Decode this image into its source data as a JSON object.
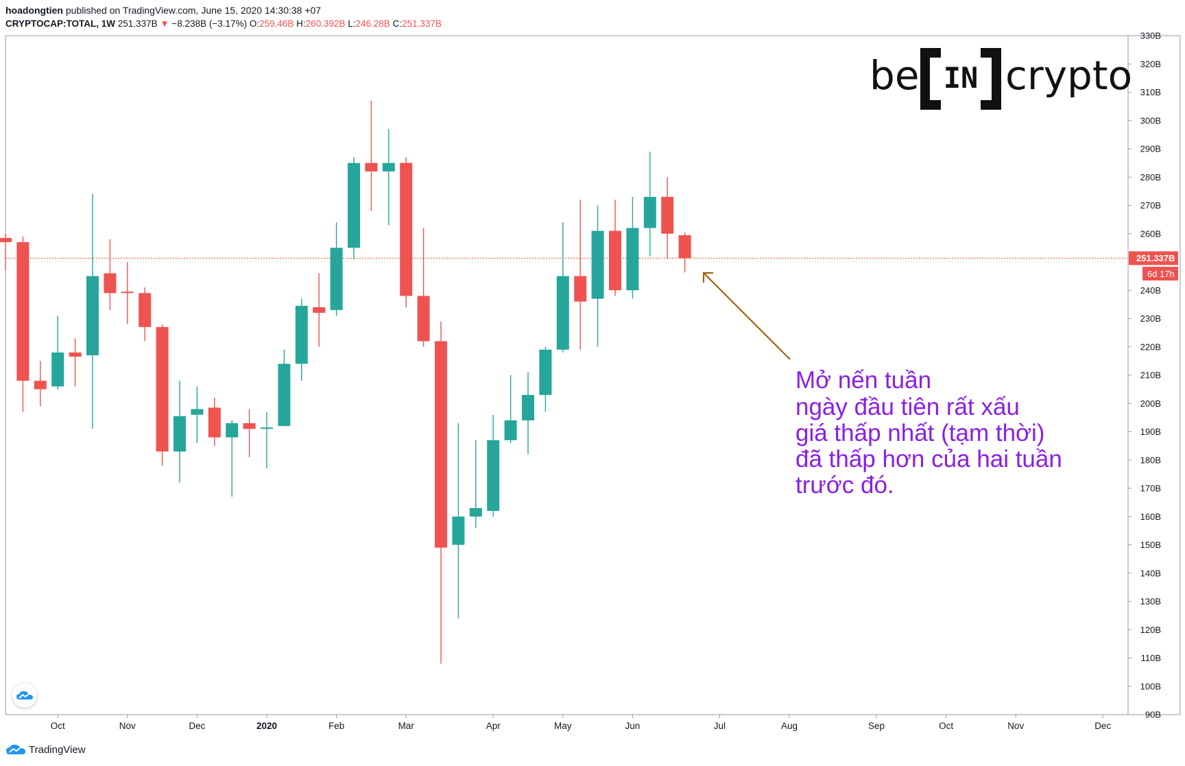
{
  "header": {
    "author": "hoadongtien",
    "published": "published on TradingView.com, June 15, 2020 14:30:38 +07",
    "symbol": "CRYPTOCAP:TOTAL, 1W",
    "last": "251.337B",
    "change_arrow": "▼",
    "change": "−8.238B (−3.17%)",
    "o_label": "O:",
    "o_val": "259.46B",
    "h_label": "H:",
    "h_val": "260.392B",
    "l_label": "L:",
    "l_val": "246.28B",
    "c_label": "C:",
    "c_val": "251.337B"
  },
  "watermark": {
    "left": "be",
    "middle": "IN",
    "right": "crypto"
  },
  "annotation": {
    "lines": [
      "Mở nến tuần",
      "ngày đầu tiên rất xấu",
      "giá thấp nhất (tạm thời)",
      "đã thấp hơn của hai tuần",
      "trước đó."
    ],
    "color": "#8a1ee6",
    "arrow_color": "#a0620a"
  },
  "price_tag": {
    "value": "251.337B",
    "countdown": "6d 17h"
  },
  "footer": {
    "brand": "TradingView"
  },
  "colors": {
    "up": "#26a69a",
    "down": "#ef5350",
    "price_line": "#f26b3a"
  },
  "chart_data": {
    "type": "candlestick",
    "interval": "1W",
    "ylim": [
      90,
      330
    ],
    "y_ticks": [
      "90B",
      "100B",
      "110B",
      "120B",
      "130B",
      "140B",
      "150B",
      "160B",
      "170B",
      "180B",
      "190B",
      "200B",
      "210B",
      "220B",
      "230B",
      "240B",
      "260B",
      "270B",
      "280B",
      "290B",
      "300B",
      "310B",
      "320B",
      "330B"
    ],
    "y_tick_values": [
      90,
      100,
      110,
      120,
      130,
      140,
      150,
      160,
      170,
      180,
      190,
      200,
      210,
      220,
      230,
      240,
      260,
      270,
      280,
      290,
      300,
      310,
      320,
      330
    ],
    "x_ticks": [
      "Oct",
      "Nov",
      "Dec",
      "2020",
      "Feb",
      "Mar",
      "Apr",
      "May",
      "Jun",
      "Jul",
      "Aug",
      "Sep",
      "Oct",
      "Nov",
      "Dec"
    ],
    "x_tick_weeks": [
      3,
      7,
      11,
      15,
      19,
      23,
      28,
      32,
      36,
      41,
      45,
      50,
      54,
      58,
      63
    ],
    "current_price": 251.337,
    "candles": [
      {
        "week": "2019-09-09",
        "o": 258.5,
        "h": 260,
        "l": 247,
        "c": 257
      },
      {
        "week": "2019-09-16",
        "o": 257,
        "h": 259,
        "l": 197,
        "c": 208
      },
      {
        "week": "2019-09-23",
        "o": 208,
        "h": 215,
        "l": 199,
        "c": 205
      },
      {
        "week": "2019-09-30",
        "o": 206,
        "h": 231,
        "l": 205,
        "c": 218
      },
      {
        "week": "2019-10-07",
        "o": 218,
        "h": 223,
        "l": 206,
        "c": 216.5
      },
      {
        "week": "2019-10-14",
        "o": 217,
        "h": 274,
        "l": 191,
        "c": 245
      },
      {
        "week": "2019-10-21",
        "o": 246,
        "h": 258,
        "l": 233,
        "c": 239
      },
      {
        "week": "2019-10-28",
        "o": 239.5,
        "h": 250,
        "l": 228,
        "c": 239
      },
      {
        "week": "2019-11-04",
        "o": 239,
        "h": 241,
        "l": 222,
        "c": 227
      },
      {
        "week": "2019-11-11",
        "o": 227,
        "h": 228,
        "l": 178,
        "c": 183
      },
      {
        "week": "2019-11-18",
        "o": 183,
        "h": 208,
        "l": 172,
        "c": 195.5
      },
      {
        "week": "2019-11-25",
        "o": 196,
        "h": 206,
        "l": 186,
        "c": 198
      },
      {
        "week": "2019-12-02",
        "o": 198.5,
        "h": 202,
        "l": 185,
        "c": 188
      },
      {
        "week": "2019-12-09",
        "o": 188,
        "h": 194,
        "l": 167,
        "c": 193
      },
      {
        "week": "2019-12-16",
        "o": 193,
        "h": 198,
        "l": 181,
        "c": 191
      },
      {
        "week": "2019-12-23",
        "o": 191,
        "h": 197,
        "l": 177,
        "c": 191.5
      },
      {
        "week": "2019-12-30",
        "o": 192,
        "h": 219,
        "l": 192,
        "c": 214
      },
      {
        "week": "2020-01-06",
        "o": 214,
        "h": 237,
        "l": 208,
        "c": 234.5
      },
      {
        "week": "2020-01-13",
        "o": 234,
        "h": 246,
        "l": 220,
        "c": 232
      },
      {
        "week": "2020-01-20",
        "o": 233,
        "h": 264,
        "l": 231,
        "c": 255
      },
      {
        "week": "2020-01-27",
        "o": 255,
        "h": 287,
        "l": 251,
        "c": 285
      },
      {
        "week": "2020-02-03",
        "o": 285,
        "h": 307,
        "l": 268,
        "c": 282
      },
      {
        "week": "2020-02-10",
        "o": 282,
        "h": 297,
        "l": 263,
        "c": 285
      },
      {
        "week": "2020-02-17",
        "o": 285,
        "h": 287,
        "l": 234,
        "c": 238
      },
      {
        "week": "2020-02-24",
        "o": 238,
        "h": 262,
        "l": 220,
        "c": 222
      },
      {
        "week": "2020-03-02",
        "o": 222,
        "h": 229,
        "l": 108,
        "c": 149
      },
      {
        "week": "2020-03-09",
        "o": 150,
        "h": 193,
        "l": 124,
        "c": 160
      },
      {
        "week": "2020-03-16",
        "o": 160,
        "h": 187,
        "l": 156,
        "c": 163
      },
      {
        "week": "2020-03-23",
        "o": 162,
        "h": 196,
        "l": 160,
        "c": 187
      },
      {
        "week": "2020-03-30",
        "o": 187,
        "h": 210,
        "l": 186,
        "c": 194
      },
      {
        "week": "2020-04-06",
        "o": 194,
        "h": 211,
        "l": 182,
        "c": 203
      },
      {
        "week": "2020-04-13",
        "o": 203,
        "h": 220,
        "l": 197,
        "c": 219
      },
      {
        "week": "2020-04-20",
        "o": 219,
        "h": 264,
        "l": 218,
        "c": 245
      },
      {
        "week": "2020-04-27",
        "o": 245,
        "h": 272,
        "l": 219,
        "c": 236
      },
      {
        "week": "2020-05-04",
        "o": 237,
        "h": 270,
        "l": 220,
        "c": 261
      },
      {
        "week": "2020-05-11",
        "o": 261,
        "h": 272,
        "l": 238,
        "c": 240
      },
      {
        "week": "2020-05-18",
        "o": 240,
        "h": 273,
        "l": 237,
        "c": 262
      },
      {
        "week": "2020-05-25",
        "o": 262,
        "h": 289,
        "l": 252,
        "c": 273
      },
      {
        "week": "2020-06-01",
        "o": 273,
        "h": 280,
        "l": 251,
        "c": 260
      },
      {
        "week": "2020-06-08",
        "o": 259.46,
        "h": 260.392,
        "l": 246.28,
        "c": 251.337
      }
    ]
  }
}
